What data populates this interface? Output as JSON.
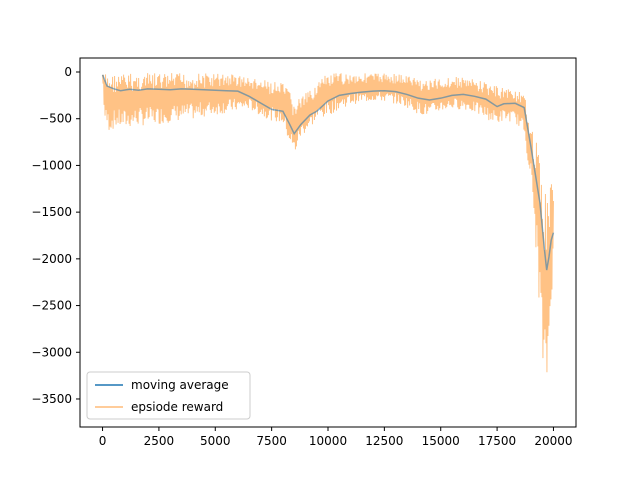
{
  "chart_data": {
    "type": "line",
    "title": "",
    "xlabel": "",
    "ylabel": "",
    "xlim": [
      -1000,
      21000
    ],
    "ylim": [
      -3800,
      150
    ],
    "x_ticks": [
      0,
      2500,
      5000,
      7500,
      10000,
      12500,
      15000,
      17500,
      20000
    ],
    "x_tick_labels": [
      "0",
      "2500",
      "5000",
      "7500",
      "10000",
      "12500",
      "15000",
      "17500",
      "20000"
    ],
    "y_ticks": [
      0,
      -500,
      -1000,
      -1500,
      -2000,
      -2500,
      -3000,
      -3500
    ],
    "y_tick_labels": [
      "0",
      "−500",
      "−1000",
      "−1500",
      "−2000",
      "−2500",
      "−3000",
      "−3500"
    ],
    "grid": false,
    "legend_position": "lower-left",
    "series": [
      {
        "name": "moving average",
        "color": "#1f77b4",
        "points": [
          [
            0,
            -30
          ],
          [
            200,
            -150
          ],
          [
            500,
            -180
          ],
          [
            800,
            -200
          ],
          [
            1200,
            -185
          ],
          [
            1600,
            -195
          ],
          [
            2000,
            -180
          ],
          [
            2500,
            -185
          ],
          [
            3000,
            -190
          ],
          [
            3500,
            -180
          ],
          [
            4000,
            -185
          ],
          [
            4500,
            -190
          ],
          [
            5000,
            -195
          ],
          [
            5500,
            -200
          ],
          [
            6000,
            -205
          ],
          [
            6500,
            -260
          ],
          [
            7000,
            -330
          ],
          [
            7500,
            -400
          ],
          [
            8000,
            -420
          ],
          [
            8300,
            -560
          ],
          [
            8500,
            -660
          ],
          [
            8800,
            -560
          ],
          [
            9200,
            -460
          ],
          [
            9500,
            -420
          ],
          [
            10000,
            -310
          ],
          [
            10500,
            -250
          ],
          [
            11000,
            -230
          ],
          [
            11500,
            -215
          ],
          [
            12000,
            -205
          ],
          [
            12500,
            -200
          ],
          [
            13000,
            -210
          ],
          [
            13500,
            -240
          ],
          [
            14000,
            -280
          ],
          [
            14500,
            -300
          ],
          [
            15000,
            -280
          ],
          [
            15500,
            -250
          ],
          [
            16000,
            -240
          ],
          [
            16500,
            -260
          ],
          [
            17000,
            -290
          ],
          [
            17500,
            -370
          ],
          [
            17800,
            -340
          ],
          [
            18300,
            -335
          ],
          [
            18700,
            -380
          ],
          [
            19000,
            -800
          ],
          [
            19200,
            -1100
          ],
          [
            19400,
            -1400
          ],
          [
            19600,
            -1900
          ],
          [
            19700,
            -2120
          ],
          [
            19800,
            -1980
          ],
          [
            19900,
            -1800
          ],
          [
            20000,
            -1720
          ]
        ]
      },
      {
        "name": "epsiode reward",
        "color": "#ffbb78",
        "band": [
          [
            0,
            -30,
            -30
          ],
          [
            100,
            -10,
            -560
          ],
          [
            300,
            -10,
            -640
          ],
          [
            600,
            -20,
            -600
          ],
          [
            1000,
            -10,
            -610
          ],
          [
            1500,
            -10,
            -580
          ],
          [
            2000,
            -10,
            -570
          ],
          [
            2500,
            -10,
            -560
          ],
          [
            3000,
            -10,
            -540
          ],
          [
            3500,
            -10,
            -520
          ],
          [
            4000,
            -10,
            -510
          ],
          [
            4500,
            -10,
            -480
          ],
          [
            5000,
            -10,
            -460
          ],
          [
            5500,
            -10,
            -440
          ],
          [
            6000,
            -20,
            -420
          ],
          [
            6500,
            -60,
            -400
          ],
          [
            7000,
            -80,
            -470
          ],
          [
            7500,
            -100,
            -520
          ],
          [
            8000,
            -120,
            -560
          ],
          [
            8300,
            -200,
            -780
          ],
          [
            8500,
            -300,
            -920
          ],
          [
            8800,
            -260,
            -700
          ],
          [
            9200,
            -200,
            -600
          ],
          [
            9500,
            -100,
            -520
          ],
          [
            10000,
            -20,
            -470
          ],
          [
            10500,
            -10,
            -400
          ],
          [
            11000,
            -10,
            -350
          ],
          [
            11500,
            -10,
            -330
          ],
          [
            12000,
            -10,
            -310
          ],
          [
            12500,
            -10,
            -320
          ],
          [
            13000,
            -10,
            -340
          ],
          [
            13500,
            -30,
            -380
          ],
          [
            14000,
            -60,
            -450
          ],
          [
            14500,
            -80,
            -480
          ],
          [
            15000,
            -60,
            -420
          ],
          [
            15500,
            -50,
            -400
          ],
          [
            16000,
            -50,
            -400
          ],
          [
            16500,
            -80,
            -440
          ],
          [
            17000,
            -100,
            -500
          ],
          [
            17500,
            -150,
            -560
          ],
          [
            17800,
            -160,
            -520
          ],
          [
            18300,
            -180,
            -540
          ],
          [
            18700,
            -250,
            -650
          ],
          [
            19000,
            -500,
            -1200
          ],
          [
            19200,
            -700,
            -1800
          ],
          [
            19400,
            -900,
            -2600
          ],
          [
            19600,
            -1100,
            -3600
          ],
          [
            19700,
            -1400,
            -3400
          ],
          [
            19800,
            -1100,
            -3100
          ],
          [
            19900,
            -1000,
            -2400
          ],
          [
            20000,
            -1000,
            -2200
          ]
        ]
      }
    ]
  },
  "legend": {
    "items": [
      {
        "label": "moving average",
        "color": "#1f77b4"
      },
      {
        "label": "epsiode reward",
        "color": "#ffbb78"
      }
    ]
  }
}
